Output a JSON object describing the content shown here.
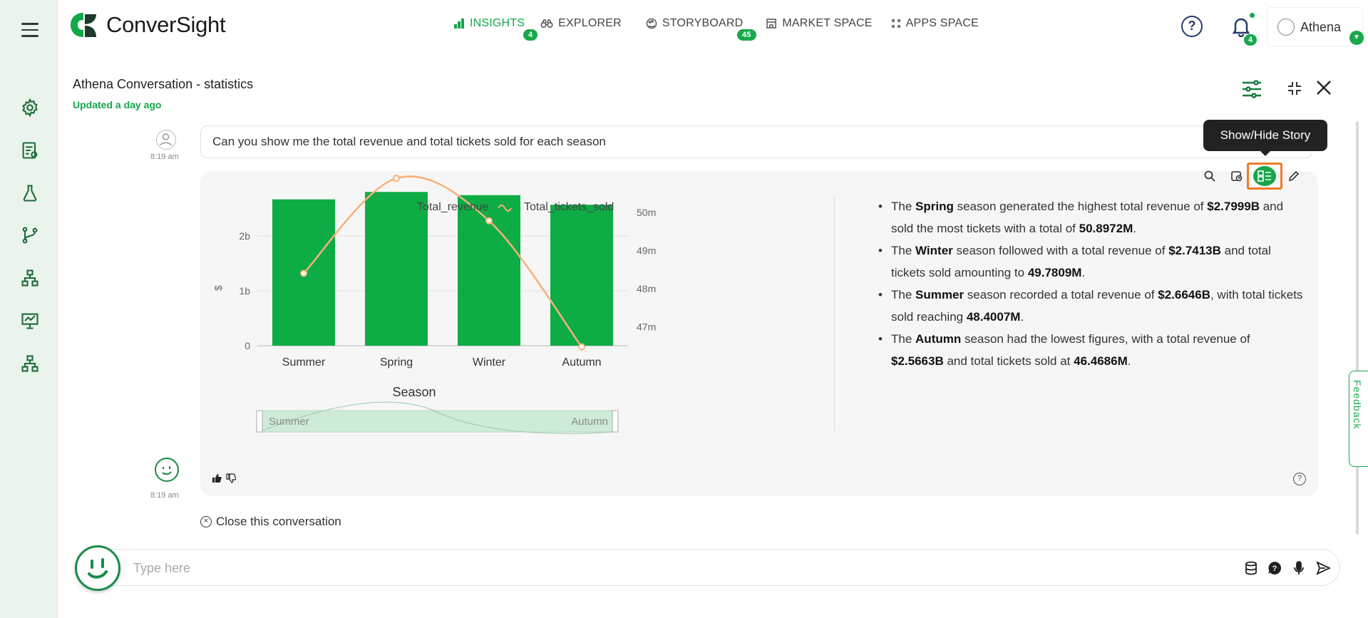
{
  "app": {
    "logo_text": "ConverSight",
    "menu_icon": "hamburger-icon"
  },
  "nav": {
    "items": [
      {
        "label": "INSIGHTS",
        "icon": "bar-chart-icon",
        "badge": "4",
        "active": true
      },
      {
        "label": "EXPLORER",
        "icon": "binoculars-icon",
        "badge": "",
        "active": false
      },
      {
        "label": "STORYBOARD",
        "icon": "palette-icon",
        "badge": "45",
        "active": false
      },
      {
        "label": "MARKET SPACE",
        "icon": "store-icon",
        "badge": "",
        "active": false
      },
      {
        "label": "APPS SPACE",
        "icon": "grid-icon",
        "badge": "",
        "active": false
      }
    ]
  },
  "header": {
    "help_icon": "?",
    "notification_count": "4",
    "user_name": "Athena",
    "caret": "▼"
  },
  "sidebar": {
    "icons": [
      "settings-icon",
      "report-icon",
      "flask-icon",
      "branch-icon",
      "hierarchy-icon",
      "presentation-icon",
      "org-chart-icon"
    ]
  },
  "conversation": {
    "title": "Athena Conversation - statistics",
    "updated": "Updated a day ago",
    "question": "Can you show me the total revenue and total tickets sold for each season",
    "question_time": "8:19 am",
    "answer_time": "8:19 am",
    "tooltip": "Show/Hide Story",
    "close_label": "Close this conversation",
    "input_placeholder": "Type here",
    "feedback_label": "Feedback",
    "help_mark": "?"
  },
  "story": [
    {
      "parts": [
        [
          "The ",
          false
        ],
        [
          "Spring",
          true
        ],
        [
          " season generated the highest total revenue of ",
          false
        ],
        [
          "$2.7999B",
          true
        ],
        [
          " and sold the most tickets with a total of ",
          false
        ],
        [
          "50.8972M",
          true
        ],
        [
          ".",
          false
        ]
      ]
    },
    {
      "parts": [
        [
          "The ",
          false
        ],
        [
          "Winter",
          true
        ],
        [
          " season followed with a total revenue of ",
          false
        ],
        [
          "$2.7413B",
          true
        ],
        [
          " and total tickets sold amounting to ",
          false
        ],
        [
          "49.7809M",
          true
        ],
        [
          ".",
          false
        ]
      ]
    },
    {
      "parts": [
        [
          "The ",
          false
        ],
        [
          "Summer",
          true
        ],
        [
          " season recorded a total revenue of ",
          false
        ],
        [
          "$2.6646B",
          true
        ],
        [
          ", with total tickets sold reaching ",
          false
        ],
        [
          "48.4007M",
          true
        ],
        [
          ".",
          false
        ]
      ]
    },
    {
      "parts": [
        [
          "The ",
          false
        ],
        [
          "Autumn",
          true
        ],
        [
          " season had the lowest figures, with a total revenue of ",
          false
        ],
        [
          "$2.5663B",
          true
        ],
        [
          " and total tickets sold at ",
          false
        ],
        [
          "46.4686M",
          true
        ],
        [
          ".",
          false
        ]
      ]
    }
  ],
  "chart_data": {
    "type": "bar",
    "categories": [
      "Summer",
      "Spring",
      "Winter",
      "Autumn"
    ],
    "series": [
      {
        "name": "Total_revenue",
        "type": "bar",
        "axis": "left",
        "values": [
          2.6646,
          2.7999,
          2.7413,
          2.5663
        ],
        "color": "#0eac45"
      },
      {
        "name": "Total_tickets_sold",
        "type": "line",
        "axis": "right",
        "values": [
          48.4007,
          50.8972,
          49.7809,
          46.4686
        ],
        "color": "#f6b27a"
      }
    ],
    "xlabel": "Season",
    "ylabel": "$",
    "y_ticks": [
      "0",
      "1b",
      "2b"
    ],
    "y_range": [
      0,
      3.05
    ],
    "y2_ticks": [
      "47m",
      "48m",
      "49m",
      "50m"
    ],
    "y2_tick_values": [
      47,
      48,
      49,
      50
    ],
    "y2_range": [
      46.5,
      50.9
    ],
    "legend_position": "top-center",
    "slider": {
      "start_label": "Summer",
      "end_label": "Autumn"
    },
    "grid": true
  },
  "colors": {
    "brand_green": "#12a84a",
    "highlight_orange": "#f07b27"
  }
}
